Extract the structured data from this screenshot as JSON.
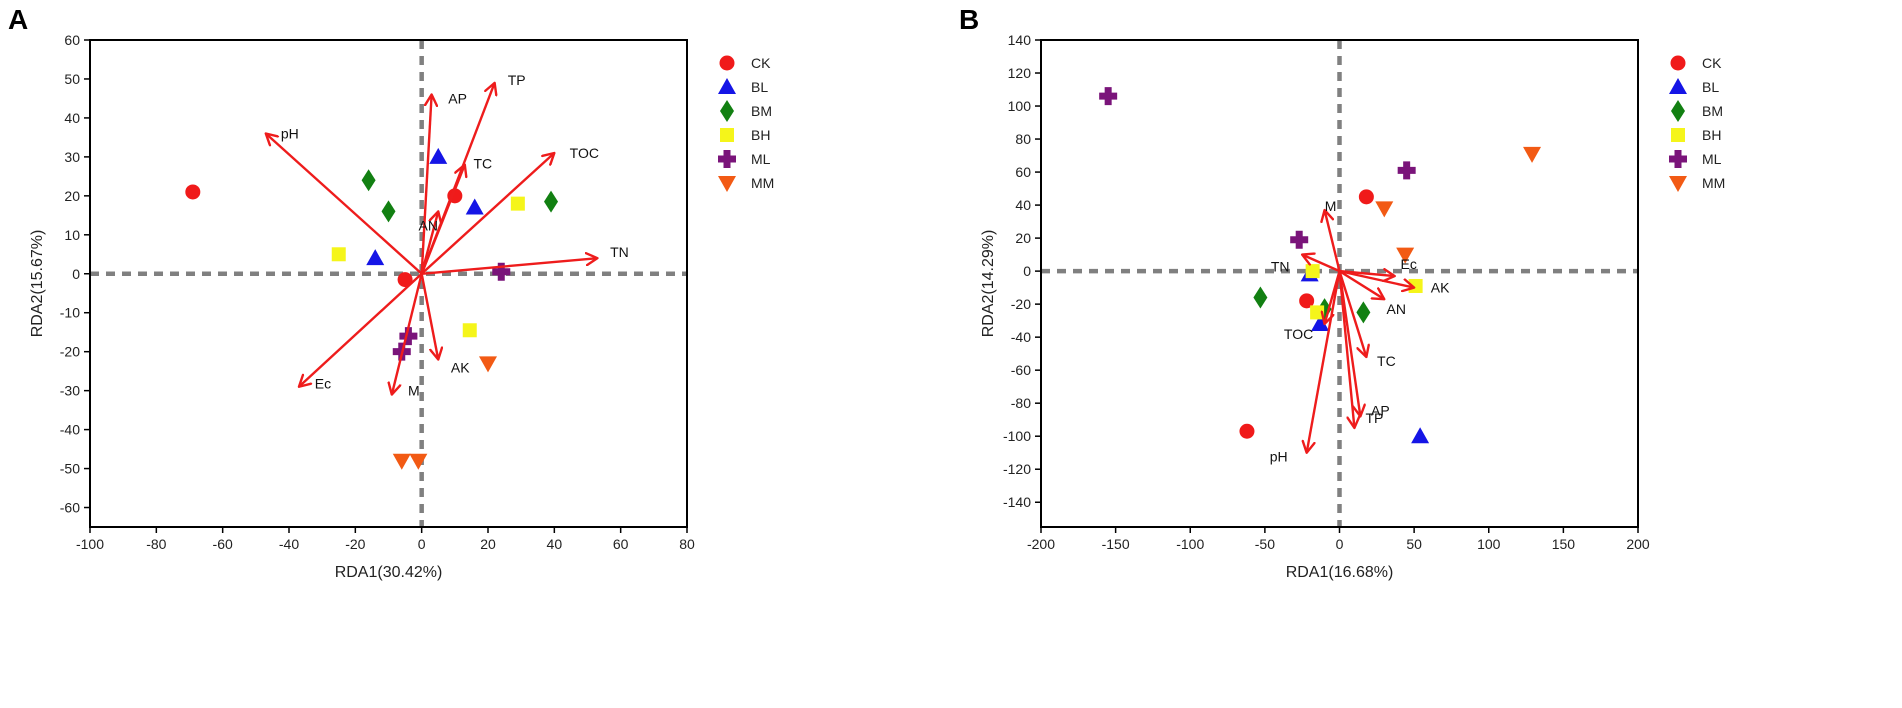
{
  "chart_data": [
    {
      "type": "scatter",
      "panel_label": "A",
      "title": "",
      "xlabel": "RDA1(30.42%)",
      "ylabel": "RDA2(15.67%)",
      "xlim": [
        -100,
        80
      ],
      "ylim": [
        -65,
        60
      ],
      "xticks": [
        -100,
        -80,
        -60,
        -40,
        -20,
        0,
        20,
        40,
        60,
        80
      ],
      "yticks": [
        -60,
        -50,
        -40,
        -30,
        -20,
        -10,
        0,
        10,
        20,
        30,
        40,
        50,
        60
      ],
      "legend_position": "right",
      "series": [
        {
          "name": "CK",
          "marker": "circle",
          "color": "#f01a1a",
          "points": [
            [
              -69,
              21
            ],
            [
              10,
              20
            ],
            [
              -5,
              -1.5
            ]
          ]
        },
        {
          "name": "BL",
          "marker": "triangle-up",
          "color": "#1515e6",
          "points": [
            [
              5,
              30
            ],
            [
              16,
              17
            ],
            [
              -14,
              4
            ]
          ]
        },
        {
          "name": "BM",
          "marker": "diamond",
          "color": "#128012",
          "points": [
            [
              -16,
              24
            ],
            [
              -10,
              16
            ],
            [
              39,
              18.5
            ]
          ]
        },
        {
          "name": "BH",
          "marker": "square",
          "color": "#f5f51a",
          "points": [
            [
              -25,
              5
            ],
            [
              29,
              18
            ],
            [
              14.5,
              -14.5
            ]
          ]
        },
        {
          "name": "ML",
          "marker": "plus",
          "color": "#7a147a",
          "points": [
            [
              -4,
              -16
            ],
            [
              -6,
              -20
            ],
            [
              24,
              0.5
            ]
          ]
        },
        {
          "name": "MM",
          "marker": "triangle-down",
          "color": "#f25a14",
          "points": [
            [
              20,
              -23
            ],
            [
              -6,
              -48
            ],
            [
              -1,
              -48
            ]
          ]
        }
      ],
      "vectors": [
        {
          "label": "pH",
          "x": -47,
          "y": 36
        },
        {
          "label": "AP",
          "x": 3,
          "y": 46
        },
        {
          "label": "TP",
          "x": 22,
          "y": 49
        },
        {
          "label": "TC",
          "x": 13,
          "y": 28
        },
        {
          "label": "TOC",
          "x": 40,
          "y": 31
        },
        {
          "label": "AN",
          "x": 5,
          "y": 16
        },
        {
          "label": "TN",
          "x": 53,
          "y": 4
        },
        {
          "label": "AK",
          "x": 5,
          "y": -22
        },
        {
          "label": "Ec",
          "x": -37,
          "y": -29
        },
        {
          "label": "M",
          "x": -9,
          "y": -31
        }
      ]
    },
    {
      "type": "scatter",
      "panel_label": "B",
      "title": "",
      "xlabel": "RDA1(16.68%)",
      "ylabel": "RDA2(14.29%)",
      "xlim": [
        -200,
        200
      ],
      "ylim": [
        -155,
        140
      ],
      "xticks": [
        -200,
        -150,
        -100,
        -50,
        0,
        50,
        100,
        150,
        200
      ],
      "yticks": [
        -140,
        -120,
        -100,
        -80,
        -60,
        -40,
        -20,
        0,
        20,
        40,
        60,
        80,
        100,
        120,
        140
      ],
      "legend_position": "right",
      "series": [
        {
          "name": "CK",
          "marker": "circle",
          "color": "#f01a1a",
          "points": [
            [
              18,
              45
            ],
            [
              -22,
              -18
            ],
            [
              -62,
              -97
            ]
          ]
        },
        {
          "name": "BL",
          "marker": "triangle-up",
          "color": "#1515e6",
          "points": [
            [
              -20,
              -2
            ],
            [
              -13,
              -32
            ],
            [
              54,
              -100
            ]
          ]
        },
        {
          "name": "BM",
          "marker": "diamond",
          "color": "#128012",
          "points": [
            [
              -53,
              -16
            ],
            [
              -10,
              -23
            ],
            [
              16,
              -25
            ]
          ]
        },
        {
          "name": "BH",
          "marker": "square",
          "color": "#f5f51a",
          "points": [
            [
              -18,
              0
            ],
            [
              -15,
              -25
            ],
            [
              51,
              -9
            ]
          ]
        },
        {
          "name": "ML",
          "marker": "plus",
          "color": "#7a147a",
          "points": [
            [
              -155,
              106
            ],
            [
              -27,
              19
            ],
            [
              45,
              61
            ]
          ]
        },
        {
          "name": "MM",
          "marker": "triangle-down",
          "color": "#f25a14",
          "points": [
            [
              129,
              71
            ],
            [
              30,
              38
            ],
            [
              44,
              10
            ]
          ]
        }
      ],
      "vectors": [
        {
          "label": "M",
          "x": -10,
          "y": 37
        },
        {
          "label": "TN",
          "x": -25,
          "y": 10
        },
        {
          "label": "Ec",
          "x": 37,
          "y": -3
        },
        {
          "label": "AN",
          "x": 30,
          "y": -17
        },
        {
          "label": "AK",
          "x": 50,
          "y": -10
        },
        {
          "label": "TOC",
          "x": -10,
          "y": -32
        },
        {
          "label": "TC",
          "x": 18,
          "y": -52
        },
        {
          "label": "AP",
          "x": 14,
          "y": -88
        },
        {
          "label": "TP",
          "x": 10,
          "y": -95
        },
        {
          "label": "pH",
          "x": -22,
          "y": -110
        }
      ]
    }
  ]
}
